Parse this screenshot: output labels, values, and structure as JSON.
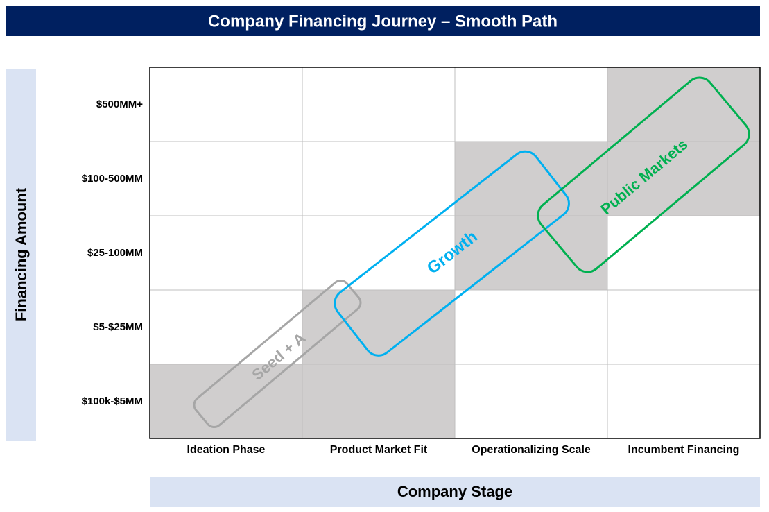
{
  "header": {
    "title": "Company Financing Journey – Smooth Path"
  },
  "y_axis": {
    "label": "Financing Amount",
    "rows": [
      "$500MM+",
      "$100-500MM",
      "$25-100MM",
      "$5-$25MM",
      "$100k-$5MM"
    ]
  },
  "x_axis": {
    "label": "Company Stage",
    "columns": [
      "Ideation Phase",
      "Product Market Fit",
      "Operationalizing Scale",
      "Incumbent Financing"
    ]
  },
  "paths": [
    {
      "label": "Seed + A"
    },
    {
      "label": "Growth"
    },
    {
      "label": "Public Markets"
    }
  ]
}
